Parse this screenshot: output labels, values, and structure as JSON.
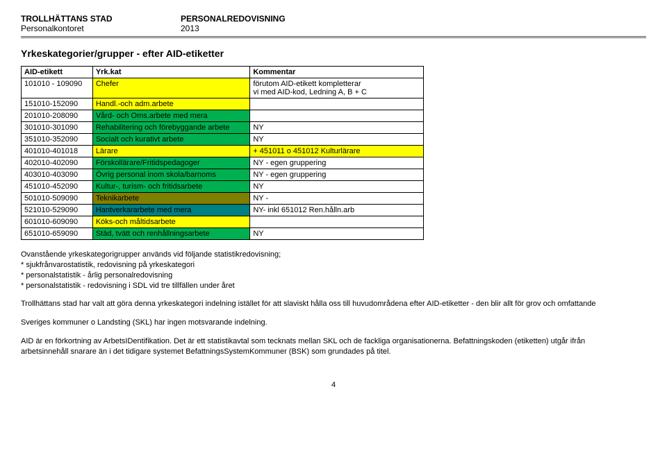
{
  "header": {
    "org": "TROLLHÄTTANS STAD",
    "dept": "Personalkontoret",
    "report": "PERSONALREDOVISNING",
    "year": "2013"
  },
  "section_title": "Yrkeskategorier/grupper - efter AID-etiketter",
  "table": {
    "headers": [
      "AID-etikett",
      "Yrk.kat",
      "Kommentar"
    ],
    "rows": [
      {
        "c0": "101010 - 109090",
        "c1": "Chefer",
        "c2a": "förutom AID-etikett kompletterar",
        "c2b": "vi med AID-kod, Ledning A, B + C",
        "cls0": "white",
        "cls1": "yellow",
        "cls2": "white",
        "multiline": true
      },
      {
        "c0": "151010-152090",
        "c1": "Handl.-och adm.arbete",
        "c2": "",
        "cls0": "white",
        "cls1": "yellow",
        "cls2": "white"
      },
      {
        "c0": "201010-208090",
        "c1": "Vård- och Oms.arbete med mera",
        "c2": "",
        "cls0": "white",
        "cls1": "green",
        "cls2": "white"
      },
      {
        "c0": "301010-301090",
        "c1": "Rehabilitering och förebyggande arbete",
        "c2": "NY",
        "cls0": "white",
        "cls1": "green",
        "cls2": "white"
      },
      {
        "c0": "351010-352090",
        "c1": "Socialt och kurativt arbete",
        "c2": "NY",
        "cls0": "white",
        "cls1": "green",
        "cls2": "white"
      },
      {
        "c0": "401010-401018",
        "c1": "Lärare",
        "c2": "+ 451011 o 451012 Kulturlärare",
        "cls0": "white",
        "cls1": "yellow",
        "cls2": "yellow"
      },
      {
        "c0": "402010-402090",
        "c1": "Förskollärare/Fritidspedagoger",
        "c2": "NY - egen gruppering",
        "cls0": "white",
        "cls1": "green",
        "cls2": "white"
      },
      {
        "c0": "403010-403090",
        "c1": "Övrig personal inom skola/barnoms",
        "c2": "NY - egen gruppering",
        "cls0": "white",
        "cls1": "green",
        "cls2": "white"
      },
      {
        "c0": "451010-452090",
        "c1": "Kultur-, turism- och fritidsarbete",
        "c2": "NY",
        "cls0": "white",
        "cls1": "green",
        "cls2": "white"
      },
      {
        "c0": "501010-509090",
        "c1": "Teknikarbete",
        "c2": "NY -",
        "cls0": "white",
        "cls1": "olive",
        "cls2": "white"
      },
      {
        "c0": "521010-529090",
        "c1": "Hantverkararbete med mera",
        "c2": "NY- inkl 651012 Ren.hålln.arb",
        "cls0": "white",
        "cls1": "teal",
        "cls2": "white"
      },
      {
        "c0": "601010-609090",
        "c1": "Köks-och måltidsarbete",
        "c2": "",
        "cls0": "white",
        "cls1": "yellow",
        "cls2": "white"
      },
      {
        "c0": "651010-659090",
        "c1": "Städ, tvätt och renhållningsarbete",
        "c2": "NY",
        "cls0": "white",
        "cls1": "green",
        "cls2": "white"
      }
    ]
  },
  "notes": {
    "p1": "Ovanstående yrkeskategorigrupper används vid följande statistikredovisning;",
    "b1": "* sjukfrånvarostatistik, redovisning på yrkeskategori",
    "b2": "* personalstatistik - årlig personalredovisning",
    "b3": "* personalstatistik - redovisning i SDL vid tre tillfällen under året",
    "p2": "Trollhättans stad har valt att göra denna yrkeskategori indelning istället för att slaviskt hålla oss till huvudområdena efter AID-etiketter - den blir allt för grov och omfattande",
    "p3": "Sveriges kommuner o Landsting (SKL) har ingen motsvarande indelning.",
    "p4": "AID är en förkortning av ArbetsIDentifikation. Det är ett statistikavtal som tecknats mellan SKL och de fackliga organisationerna. Befattningskoden (etiketten) utgår ifrån arbetsinnehåll snarare än i det tidigare systemet BefattningsSystemKommuner (BSK) som grundades på titel."
  },
  "page_number": "4"
}
